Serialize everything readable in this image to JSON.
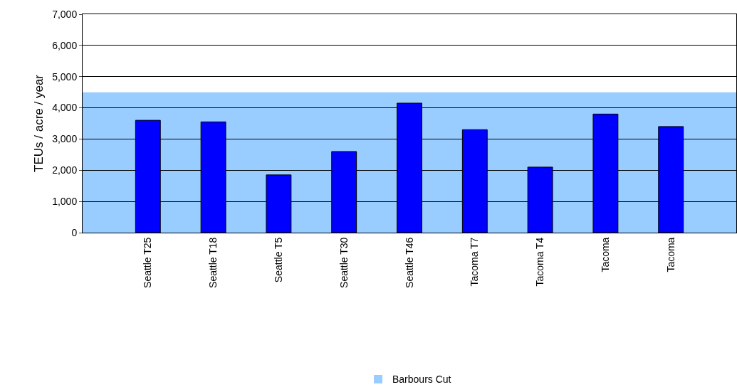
{
  "chart_data": {
    "type": "bar",
    "ylabel": "TEUs / acre / year",
    "categories": [
      "Seattle T25",
      "Seattle T18",
      "Seattle T5",
      "Seattle T30",
      "Seattle T46",
      "Tacoma T7",
      "Tacoma T4",
      "Tacoma",
      "Tacoma"
    ],
    "values": [
      3600,
      3550,
      1850,
      2600,
      4150,
      3300,
      2100,
      3800,
      3400
    ],
    "color": "#0000ff",
    "ylim": [
      0,
      7000
    ],
    "yticks": [
      {
        "value": 0,
        "label": "0"
      },
      {
        "value": 1000,
        "label": "1,000"
      },
      {
        "value": 2000,
        "label": "2,000"
      },
      {
        "value": 3000,
        "label": "3,000"
      },
      {
        "value": 4000,
        "label": "4,000"
      },
      {
        "value": 5000,
        "label": "5,000"
      },
      {
        "value": 6000,
        "label": "6,000"
      },
      {
        "value": 7000,
        "label": "7,000"
      }
    ],
    "bands": [
      {
        "axis": "y",
        "from": 0,
        "to": 4500,
        "label": "Barbours Cut",
        "color": "#99ccff"
      }
    ],
    "grid": "y",
    "legend": "bottom"
  }
}
